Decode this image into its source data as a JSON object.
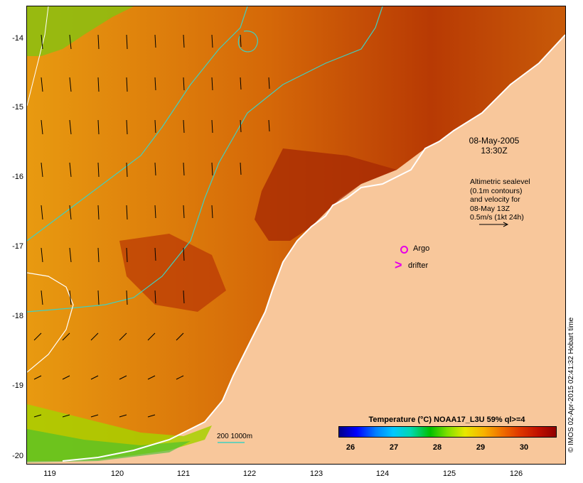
{
  "map": {
    "lat_ticks": [
      "-14",
      "-15",
      "-16",
      "-17",
      "-18",
      "-19",
      "-20"
    ],
    "lon_ticks": [
      "119",
      "120",
      "121",
      "122",
      "123",
      "124",
      "125",
      "126"
    ],
    "datetime": {
      "date": "08-May-2005",
      "time": "13:30Z"
    },
    "altimetry_note": [
      "Altimetric sealevel",
      "(0.1m contours)",
      "and velocity for",
      "08-May 13Z",
      "0.5m/s (1kt 24h)"
    ],
    "argo_label": "Argo",
    "drifter_label": "drifter",
    "drifter_symbol": ">",
    "scale_label": "200  1000m"
  },
  "colorbar": {
    "title": "Temperature (°C) NOAA17_L3U 59% ql>=4",
    "ticks": [
      "26",
      "27",
      "28",
      "29",
      "30"
    ]
  },
  "credit": "© IMOS 02-Apr-2015 02:41:32 Hobart time",
  "colors": {
    "land": "#f8c79b",
    "argo": "#e600e6",
    "contour_200m": "#40d0c0",
    "contour_1000m": "#ffffff"
  }
}
